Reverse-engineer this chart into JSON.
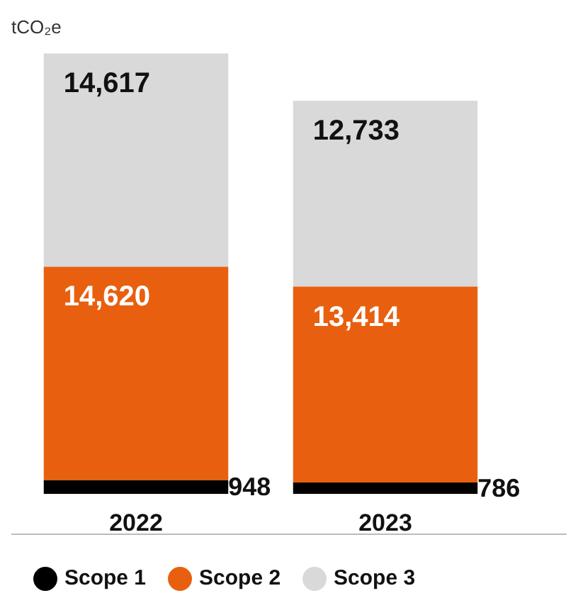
{
  "chart_data": {
    "type": "bar",
    "ylabel": "tCO₂e",
    "categories": [
      "2022",
      "2023"
    ],
    "stacked": true,
    "legend": "bottom",
    "series": [
      {
        "name": "Scope 1",
        "color": "#000000",
        "values": [
          948,
          786
        ],
        "value_labels": [
          "948",
          "786"
        ]
      },
      {
        "name": "Scope 2",
        "color": "#e8600f",
        "values": [
          14620,
          13414
        ],
        "value_labels": [
          "14,620",
          "13,414"
        ]
      },
      {
        "name": "Scope 3",
        "color": "#d9d9d9",
        "values": [
          14617,
          12733
        ],
        "value_labels": [
          "14,617",
          "12,733"
        ]
      }
    ]
  }
}
